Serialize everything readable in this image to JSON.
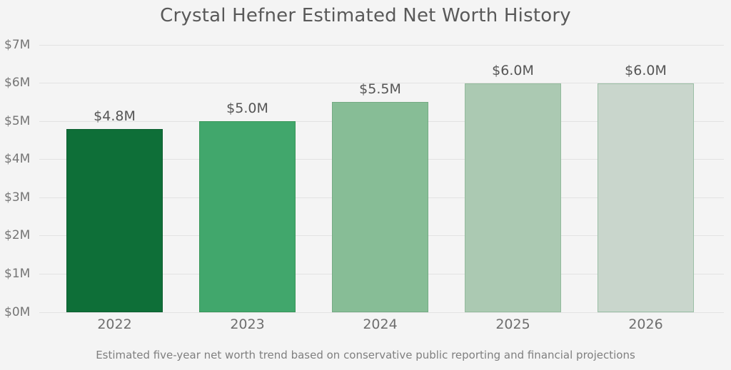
{
  "title": "Crystal Hefner Estimated Net Worth History",
  "subtitle": "Estimated five-year net worth trend based on conservative public reporting and financial projections",
  "colors": {
    "background": "#f4f4f4",
    "gridline": "#e2e2e2",
    "title_text": "#595959",
    "y_tick_text": "#757575",
    "x_tick_text": "#6e6e6e",
    "value_label_text": "#555555",
    "subtitle_text": "#7f7f7f"
  },
  "chart_data": {
    "type": "bar",
    "title": "Crystal Hefner Estimated Net Worth History",
    "subtitle": "Estimated five-year net worth trend based on conservative public reporting and financial projections",
    "categories": [
      "2022",
      "2023",
      "2024",
      "2025",
      "2026"
    ],
    "values": [
      4.8,
      5.0,
      5.5,
      6.0,
      6.0
    ],
    "value_labels": [
      "$4.8M",
      "$5.0M",
      "$5.5M",
      "$6.0M",
      "$6.0M"
    ],
    "bar_colors": [
      "#0e6f38",
      "#41a76c",
      "#87bd96",
      "#abc9b2",
      "#c9d6cc"
    ],
    "bar_edge_colors": [
      "#0c5e30",
      "#389659",
      "#74ab84",
      "#93bb9c",
      "#9abfa5"
    ],
    "xlabel": "",
    "ylabel": "",
    "ylim": [
      0,
      7
    ],
    "y_ticks": [
      0,
      1,
      2,
      3,
      4,
      5,
      6,
      7
    ],
    "y_tick_labels": [
      "$0M",
      "$1M",
      "$2M",
      "$3M",
      "$4M",
      "$5M",
      "$6M",
      "$7M"
    ],
    "grid": "horizontal",
    "legend": "none"
  }
}
